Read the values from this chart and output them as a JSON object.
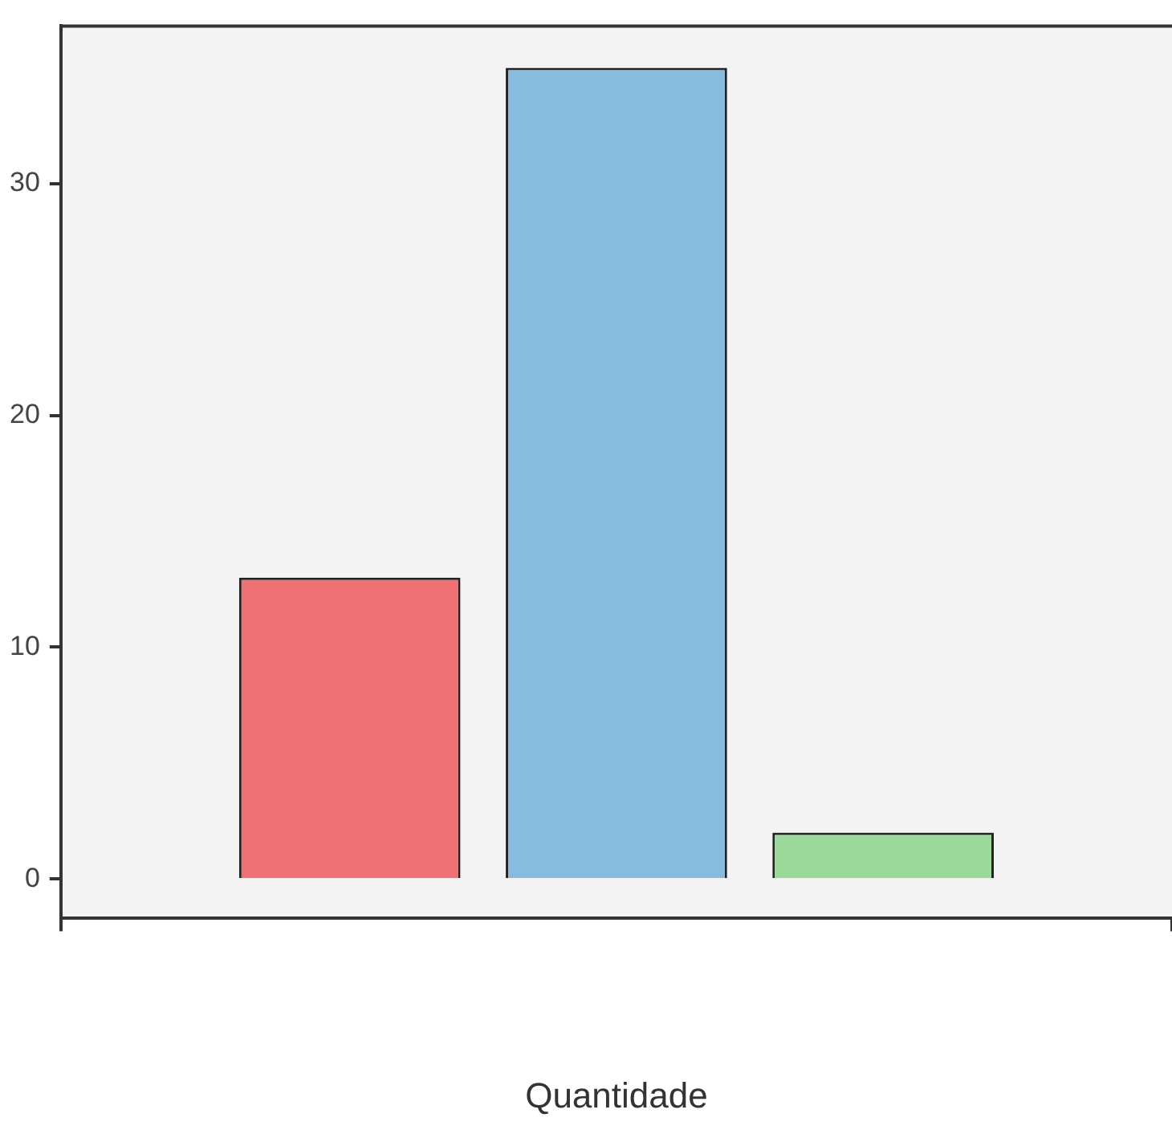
{
  "chart_data": {
    "type": "bar",
    "xlabel": "Quantidade",
    "categories": [
      null
    ],
    "series": [
      {
        "color": "#f07173",
        "values": [
          13
        ]
      },
      {
        "color": "#88bcdf",
        "values": [
          35
        ]
      },
      {
        "color": "#9ad99a",
        "values": [
          2
        ]
      }
    ],
    "ylim": [
      -1.7,
      36.8
    ],
    "yticks": [
      0,
      10,
      20,
      30
    ],
    "grid": false,
    "legend": false
  }
}
